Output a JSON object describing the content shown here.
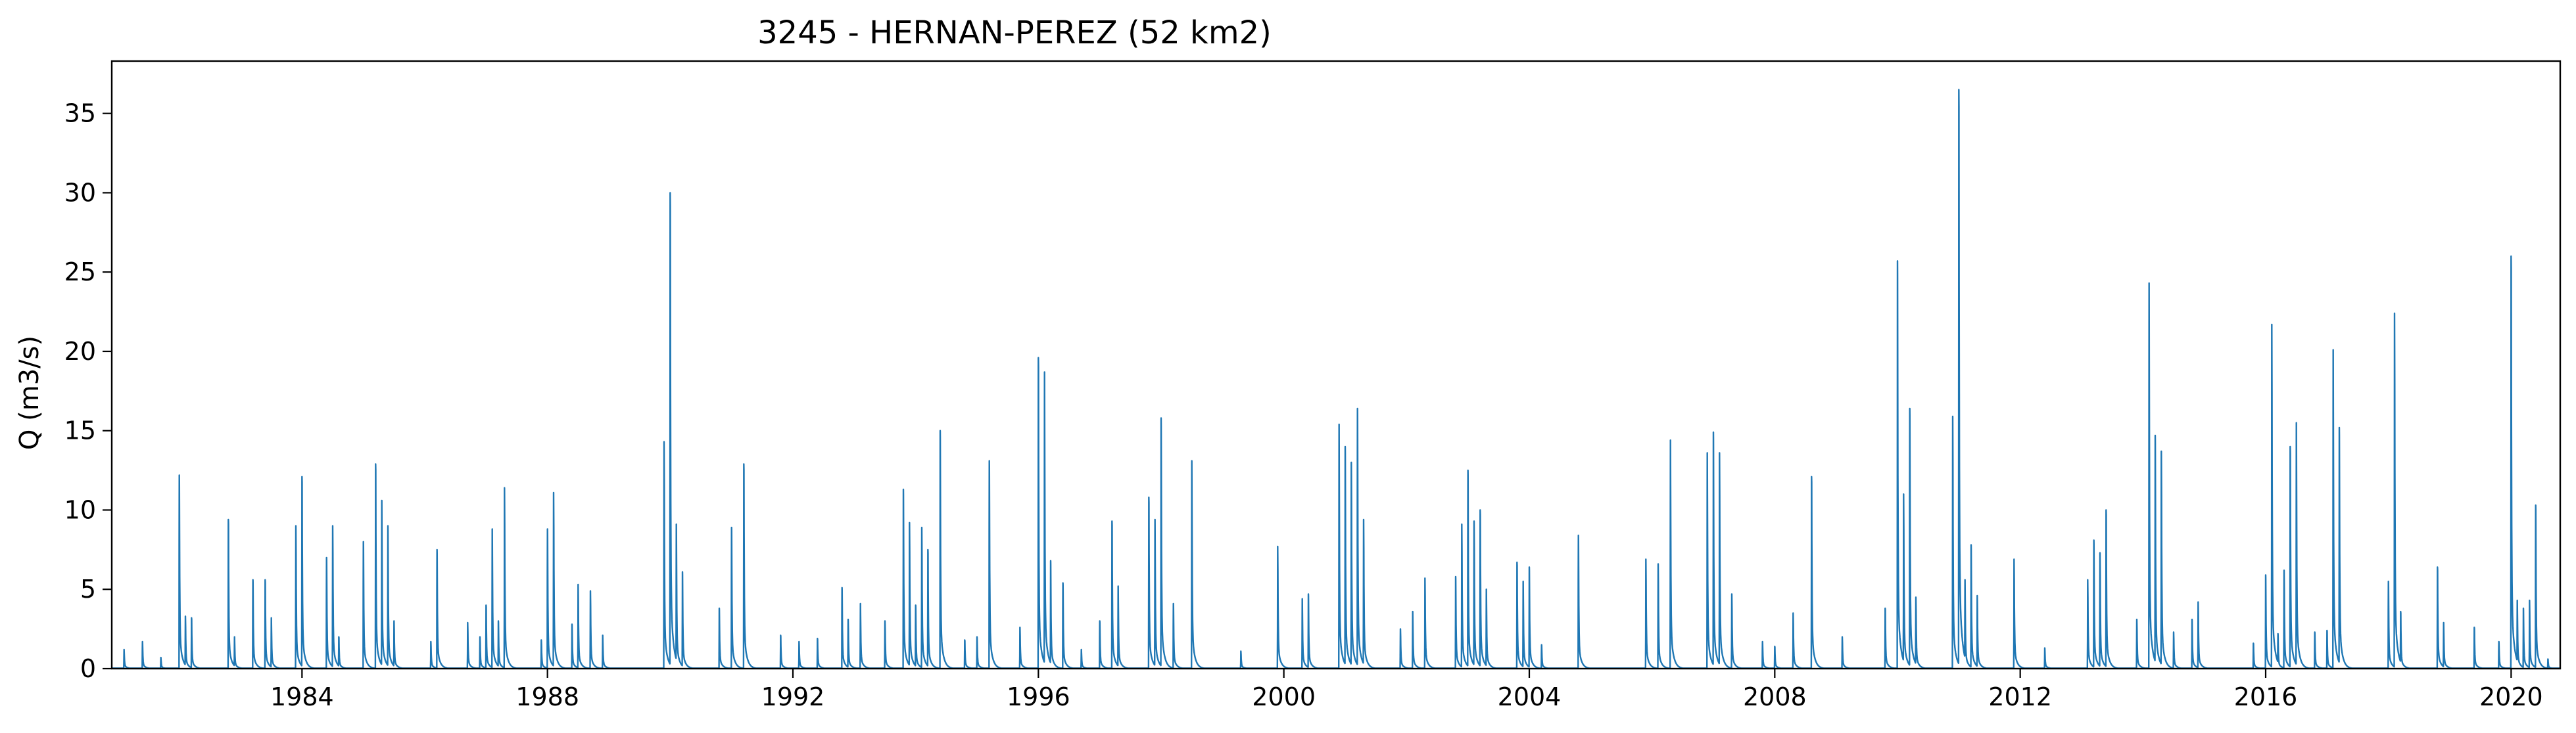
{
  "chart_data": {
    "type": "line",
    "title": "3245 - HERNAN-PEREZ (52 km2)",
    "xlabel": "",
    "ylabel": "Q (m3/s)",
    "xlim": [
      1980.9,
      2020.8
    ],
    "ylim": [
      0,
      38.3
    ],
    "x_ticks": [
      1984,
      1988,
      1992,
      1996,
      2000,
      2004,
      2008,
      2012,
      2016,
      2020
    ],
    "y_ticks": [
      0,
      5,
      10,
      15,
      20,
      25,
      30,
      35
    ],
    "x_tick_labels": [
      "1984",
      "1988",
      "1992",
      "1996",
      "2000",
      "2004",
      "2008",
      "2012",
      "2016",
      "2020"
    ],
    "y_tick_labels": [
      "0",
      "5",
      "10",
      "15",
      "20",
      "25",
      "30",
      "35"
    ],
    "grid": false,
    "series": [
      {
        "color": "#1f77b4",
        "peaks": [
          [
            1981.1,
            1.2
          ],
          [
            1981.4,
            1.7
          ],
          [
            1981.7,
            0.7
          ],
          [
            1982.0,
            12.2
          ],
          [
            1982.1,
            3.3
          ],
          [
            1982.2,
            3.2
          ],
          [
            1982.8,
            9.4
          ],
          [
            1982.9,
            2.0
          ],
          [
            1983.2,
            5.6
          ],
          [
            1983.4,
            5.6
          ],
          [
            1983.5,
            3.2
          ],
          [
            1983.9,
            9.0
          ],
          [
            1984.0,
            12.1
          ],
          [
            1984.4,
            7.0
          ],
          [
            1984.5,
            9.0
          ],
          [
            1984.6,
            2.0
          ],
          [
            1985.0,
            8.0
          ],
          [
            1985.2,
            12.9
          ],
          [
            1985.3,
            10.6
          ],
          [
            1985.4,
            9.0
          ],
          [
            1985.5,
            3.0
          ],
          [
            1986.1,
            1.7
          ],
          [
            1986.2,
            7.5
          ],
          [
            1986.7,
            2.9
          ],
          [
            1986.9,
            2.0
          ],
          [
            1987.0,
            4.0
          ],
          [
            1987.1,
            8.8
          ],
          [
            1987.2,
            3.0
          ],
          [
            1987.3,
            11.4
          ],
          [
            1987.9,
            1.8
          ],
          [
            1988.0,
            8.8
          ],
          [
            1988.1,
            11.1
          ],
          [
            1988.4,
            2.8
          ],
          [
            1988.5,
            5.3
          ],
          [
            1988.7,
            4.9
          ],
          [
            1988.9,
            2.1
          ],
          [
            1989.9,
            14.3
          ],
          [
            1990.0,
            30.0
          ],
          [
            1990.1,
            9.1
          ],
          [
            1990.2,
            6.1
          ],
          [
            1990.8,
            3.8
          ],
          [
            1991.0,
            8.9
          ],
          [
            1991.2,
            12.9
          ],
          [
            1991.8,
            2.1
          ],
          [
            1992.1,
            1.7
          ],
          [
            1992.4,
            1.9
          ],
          [
            1992.8,
            5.1
          ],
          [
            1992.9,
            3.1
          ],
          [
            1993.1,
            4.1
          ],
          [
            1993.5,
            3.0
          ],
          [
            1993.8,
            11.3
          ],
          [
            1993.9,
            9.2
          ],
          [
            1994.0,
            4.0
          ],
          [
            1994.1,
            8.9
          ],
          [
            1994.2,
            7.5
          ],
          [
            1994.4,
            15.0
          ],
          [
            1994.8,
            1.8
          ],
          [
            1995.0,
            2.0
          ],
          [
            1995.2,
            13.1
          ],
          [
            1995.7,
            2.6
          ],
          [
            1996.0,
            19.6
          ],
          [
            1996.1,
            18.7
          ],
          [
            1996.2,
            6.8
          ],
          [
            1996.4,
            5.4
          ],
          [
            1996.7,
            1.2
          ],
          [
            1997.0,
            3.0
          ],
          [
            1997.2,
            9.3
          ],
          [
            1997.3,
            5.2
          ],
          [
            1997.8,
            10.8
          ],
          [
            1997.9,
            9.4
          ],
          [
            1998.0,
            15.8
          ],
          [
            1998.2,
            4.1
          ],
          [
            1998.5,
            13.1
          ],
          [
            1999.3,
            1.1
          ],
          [
            1999.9,
            7.7
          ],
          [
            2000.3,
            4.4
          ],
          [
            2000.4,
            4.7
          ],
          [
            2000.9,
            15.4
          ],
          [
            2001.0,
            14.0
          ],
          [
            2001.1,
            13.0
          ],
          [
            2001.2,
            16.4
          ],
          [
            2001.3,
            9.4
          ],
          [
            2001.9,
            2.5
          ],
          [
            2002.1,
            3.6
          ],
          [
            2002.3,
            5.7
          ],
          [
            2002.8,
            5.8
          ],
          [
            2002.9,
            9.1
          ],
          [
            2003.0,
            12.5
          ],
          [
            2003.1,
            9.3
          ],
          [
            2003.2,
            10.0
          ],
          [
            2003.3,
            5.0
          ],
          [
            2003.8,
            6.7
          ],
          [
            2003.9,
            5.5
          ],
          [
            2004.0,
            6.4
          ],
          [
            2004.2,
            1.5
          ],
          [
            2004.8,
            8.4
          ],
          [
            2005.9,
            6.9
          ],
          [
            2006.1,
            6.6
          ],
          [
            2006.3,
            14.4
          ],
          [
            2006.9,
            13.6
          ],
          [
            2007.0,
            14.9
          ],
          [
            2007.1,
            13.6
          ],
          [
            2007.3,
            4.7
          ],
          [
            2007.8,
            1.7
          ],
          [
            2008.0,
            1.4
          ],
          [
            2008.3,
            3.5
          ],
          [
            2008.6,
            12.1
          ],
          [
            2009.1,
            2.0
          ],
          [
            2009.8,
            3.8
          ],
          [
            2010.0,
            25.7
          ],
          [
            2010.1,
            11.0
          ],
          [
            2010.2,
            16.4
          ],
          [
            2010.3,
            4.5
          ],
          [
            2010.9,
            15.9
          ],
          [
            2011.0,
            36.5
          ],
          [
            2011.1,
            5.6
          ],
          [
            2011.2,
            7.8
          ],
          [
            2011.3,
            4.6
          ],
          [
            2011.9,
            6.9
          ],
          [
            2012.4,
            1.3
          ],
          [
            2013.1,
            5.6
          ],
          [
            2013.2,
            8.1
          ],
          [
            2013.3,
            7.3
          ],
          [
            2013.4,
            10.0
          ],
          [
            2013.9,
            3.1
          ],
          [
            2014.1,
            24.3
          ],
          [
            2014.2,
            14.7
          ],
          [
            2014.3,
            13.7
          ],
          [
            2014.5,
            2.3
          ],
          [
            2014.8,
            3.1
          ],
          [
            2014.9,
            4.2
          ],
          [
            2015.8,
            1.6
          ],
          [
            2016.0,
            5.9
          ],
          [
            2016.1,
            21.7
          ],
          [
            2016.2,
            2.2
          ],
          [
            2016.3,
            6.2
          ],
          [
            2016.4,
            14.0
          ],
          [
            2016.5,
            15.5
          ],
          [
            2016.8,
            2.3
          ],
          [
            2017.0,
            2.4
          ],
          [
            2017.1,
            20.1
          ],
          [
            2017.2,
            15.2
          ],
          [
            2018.0,
            5.5
          ],
          [
            2018.1,
            22.4
          ],
          [
            2018.2,
            3.6
          ],
          [
            2018.8,
            6.4
          ],
          [
            2018.9,
            2.9
          ],
          [
            2019.4,
            2.6
          ],
          [
            2019.8,
            1.7
          ],
          [
            2020.0,
            26.0
          ],
          [
            2020.1,
            4.3
          ],
          [
            2020.2,
            3.8
          ],
          [
            2020.3,
            4.3
          ],
          [
            2020.4,
            10.3
          ],
          [
            2020.6,
            0.6
          ]
        ]
      }
    ]
  }
}
